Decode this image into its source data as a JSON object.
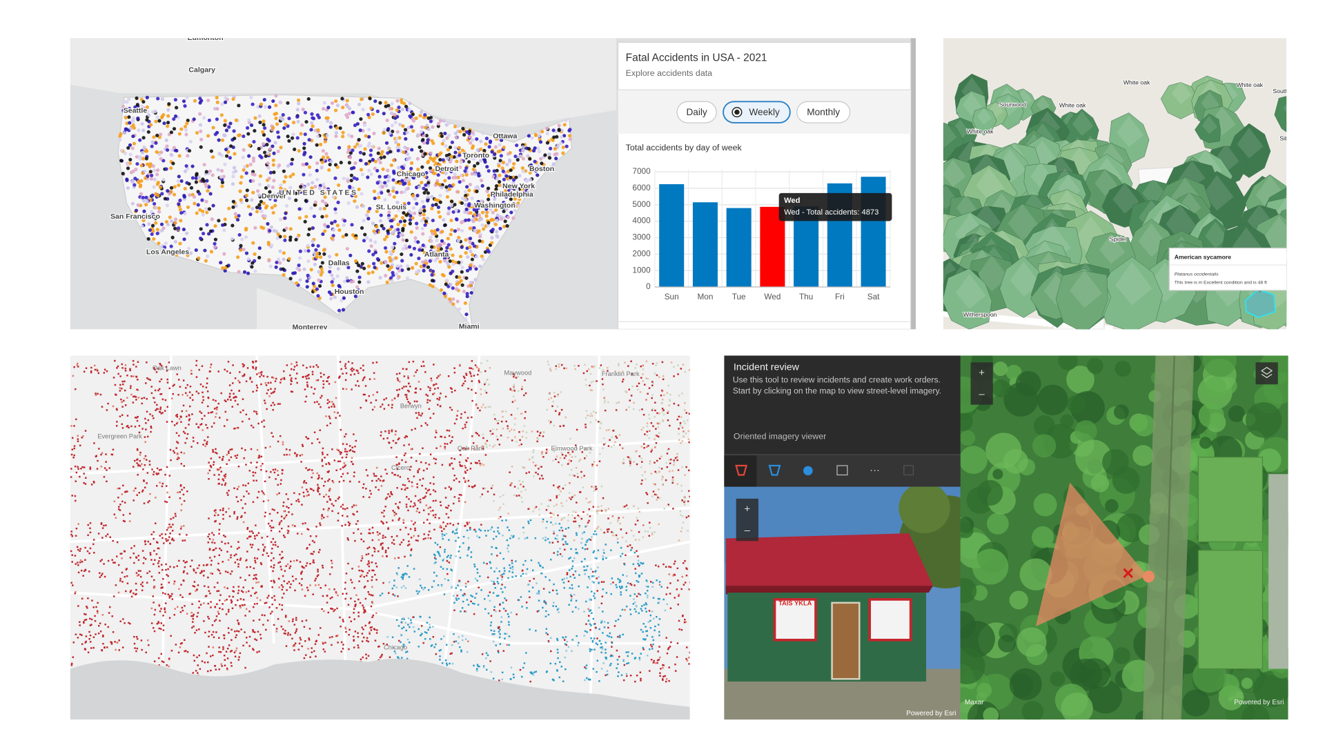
{
  "us_map": {
    "labels": [
      "Edmonton",
      "Calgary",
      "Seattle",
      "San Francisco",
      "Los Angeles",
      "Denver",
      "UNITED STATES",
      "Chicago",
      "Detroit",
      "Toronto",
      "Ottawa",
      "Boston",
      "New York",
      "Philadelphia",
      "Washington",
      "St. Louis",
      "Atlanta",
      "Dallas",
      "Houston",
      "Miami",
      "Monterrey"
    ]
  },
  "accidents_panel": {
    "title": "Fatal Accidents in USA - 2021",
    "subtitle": "Explore accidents data",
    "options": [
      "Daily",
      "Weekly",
      "Monthly"
    ],
    "selected_option": "Weekly"
  },
  "chart_data": {
    "type": "bar",
    "title": "Total accidents by day of week",
    "categories": [
      "Sun",
      "Mon",
      "Tue",
      "Wed",
      "Thu",
      "Fri",
      "Sat"
    ],
    "values": [
      6250,
      5150,
      4800,
      4873,
      4900,
      6300,
      6700
    ],
    "color": "#0079c1",
    "highlight_color": "#ff0000",
    "highlighted_category": "Wed",
    "ylim": [
      0,
      7000
    ],
    "yticks": [
      0,
      1000,
      2000,
      3000,
      4000,
      5000,
      6000,
      7000
    ],
    "grid": true,
    "tooltip": {
      "title": "Wed",
      "text": "Wed - Total accidents: 4873"
    }
  },
  "tree_scene": {
    "labels": [
      "White oak",
      "White oak",
      "White oak",
      "White oak",
      "Sourwood",
      "South",
      "Siberian elm",
      "Spidel",
      "Witherspoon"
    ],
    "popup": {
      "title": "American sycamore",
      "species": "Platanus occidentalis",
      "text": "This tree is in Excellent condition and is 48 ft"
    }
  },
  "chicago_map": {
    "labels": [
      "Oak Lawn",
      "Maywood",
      "Franklin Park",
      "Berwyn",
      "Evergreen Park",
      "Oak Park",
      "Elmwood Park",
      "Cicero",
      "Chicago"
    ]
  },
  "incident_review": {
    "title": "Incident review",
    "description": "Use this tool to review incidents and create work orders. Start by clicking on the map to view street-level imagery.",
    "viewer_label": "Oriented imagery viewer",
    "attribution_left": "Powered by Esri",
    "attribution_right": "Powered by Esri",
    "imagery_credit": "Maxar",
    "sign_text": "TAIS YKLA"
  }
}
